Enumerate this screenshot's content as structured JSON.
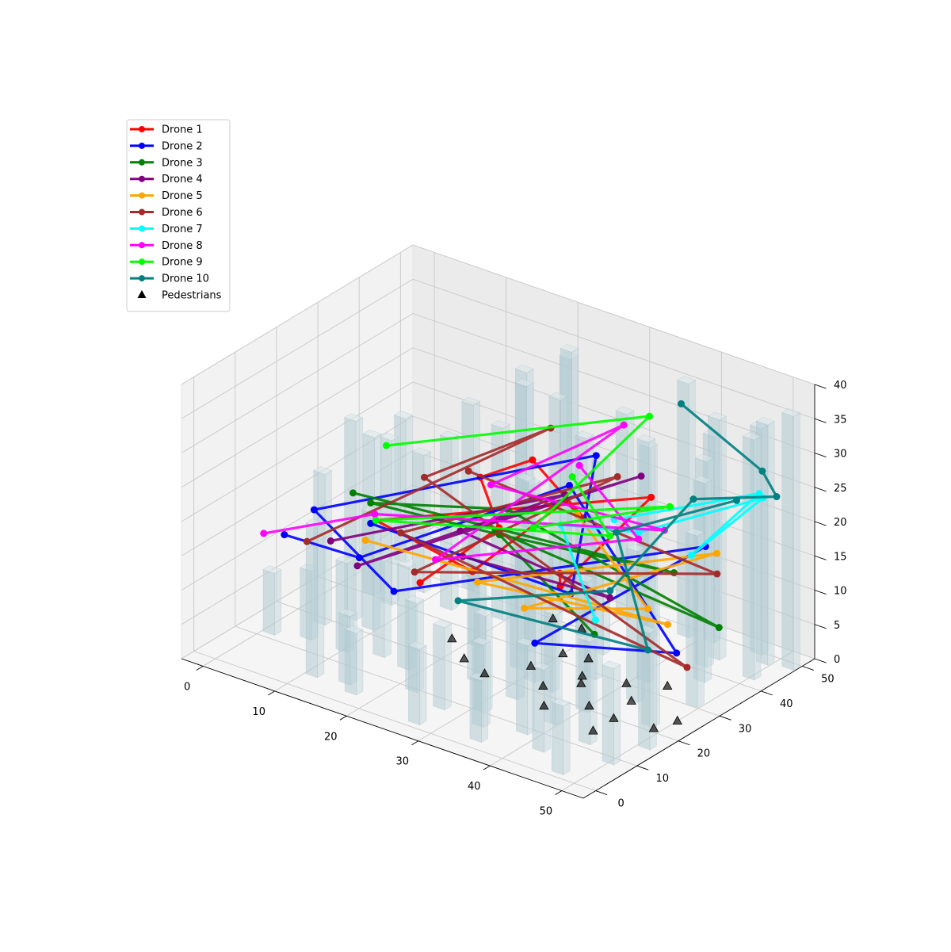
{
  "chart_data": {
    "type": "line3d",
    "title": "",
    "xlabel": "",
    "ylabel": "",
    "zlabel": "",
    "xlim": [
      -3,
      53
    ],
    "ylim": [
      -3,
      53
    ],
    "zlim": [
      0,
      40
    ],
    "x_ticks": [
      "0",
      "10",
      "20",
      "30",
      "40",
      "50"
    ],
    "y_ticks": [
      "0",
      "10",
      "20",
      "30",
      "40",
      "50"
    ],
    "z_ticks": [
      "0",
      "5",
      "10",
      "15",
      "20",
      "25",
      "30",
      "35",
      "40"
    ],
    "grid": true,
    "legend_position": "upper-left",
    "series": [
      {
        "name": "Drone 1",
        "color": "#ff0000",
        "points": [
          [
            17,
            20,
            10
          ],
          [
            28,
            20,
            22
          ],
          [
            30,
            12,
            33
          ],
          [
            20,
            42,
            21
          ],
          [
            26,
            44,
            14
          ],
          [
            32,
            29,
            24
          ],
          [
            22,
            24,
            12
          ],
          [
            12,
            18,
            18
          ],
          [
            40,
            36,
            25
          ],
          [
            40,
            14,
            20
          ],
          [
            29,
            33,
            11
          ]
        ]
      },
      {
        "name": "Drone 2",
        "color": "#0000ff",
        "points": [
          [
            13,
            15,
            19
          ],
          [
            34,
            27,
            12
          ],
          [
            26,
            47,
            22
          ],
          [
            8,
            10,
            21
          ],
          [
            22,
            5,
            16
          ],
          [
            47,
            37,
            20
          ],
          [
            33,
            20,
            7
          ],
          [
            47,
            30,
            7
          ],
          [
            24,
            44,
            18
          ],
          [
            12,
            14,
            14
          ],
          [
            5,
            8,
            17
          ]
        ]
      },
      {
        "name": "Drone 3",
        "color": "#008000",
        "points": [
          [
            14,
            9,
            26
          ],
          [
            38,
            45,
            10
          ],
          [
            20,
            34,
            13
          ],
          [
            13,
            15,
            22
          ],
          [
            28,
            22,
            24
          ],
          [
            46,
            42,
            6
          ],
          [
            20,
            33,
            14
          ],
          [
            39,
            24,
            9
          ]
        ]
      },
      {
        "name": "Drone 4",
        "color": "#800080",
        "points": [
          [
            8,
            14,
            15
          ],
          [
            28,
            36,
            21
          ],
          [
            10,
            17,
            11
          ],
          [
            34,
            44,
            23
          ],
          [
            18,
            28,
            15
          ],
          [
            40,
            26,
            14
          ],
          [
            27,
            13,
            20
          ]
        ]
      },
      {
        "name": "Drone 5",
        "color": "#ffa500",
        "points": [
          [
            14,
            12,
            18
          ],
          [
            40,
            40,
            5
          ],
          [
            25,
            20,
            13
          ],
          [
            48,
            38,
            19
          ],
          [
            35,
            14,
            15
          ],
          [
            43,
            30,
            12
          ],
          [
            32,
            32,
            21
          ]
        ]
      },
      {
        "name": "Drone 6",
        "color": "#a52a2a",
        "points": [
          [
            7,
            10,
            16
          ],
          [
            26,
            36,
            30
          ],
          [
            13,
            28,
            21
          ],
          [
            45,
            36,
            2
          ],
          [
            12,
            24,
            14
          ],
          [
            33,
            40,
            24
          ],
          [
            22,
            10,
            17
          ],
          [
            44,
            45,
            12
          ],
          [
            18,
            30,
            23
          ]
        ]
      },
      {
        "name": "Drone 7",
        "color": "#00ffff",
        "points": [
          [
            36,
            34,
            21
          ],
          [
            47,
            50,
            23
          ],
          [
            41,
            44,
            14
          ],
          [
            51,
            44,
            26
          ],
          [
            40,
            33,
            21
          ],
          [
            28,
            35,
            17
          ],
          [
            38,
            26,
            10
          ]
        ]
      },
      {
        "name": "Drone 8",
        "color": "#ff00ff",
        "points": [
          [
            5,
            3,
            19
          ],
          [
            13,
            16,
            20
          ],
          [
            43,
            34,
            22
          ],
          [
            24,
            25,
            25
          ],
          [
            31,
            45,
            29
          ],
          [
            18,
            22,
            13
          ],
          [
            44,
            26,
            24
          ],
          [
            30,
            36,
            26
          ]
        ]
      },
      {
        "name": "Drone 9",
        "color": "#00ff00",
        "points": [
          [
            10,
            24,
            26
          ],
          [
            34,
            46,
            31
          ],
          [
            27,
            30,
            18
          ],
          [
            38,
            44,
            20
          ],
          [
            12,
            18,
            18
          ],
          [
            40,
            26,
            23
          ],
          [
            29,
            36,
            24
          ]
        ]
      },
      {
        "name": "Drone 10",
        "color": "#008080",
        "points": [
          [
            39,
            45,
            35
          ],
          [
            48,
            49,
            27
          ],
          [
            50,
            49,
            24
          ],
          [
            43,
            41,
            24
          ],
          [
            36,
            33,
            11
          ],
          [
            20,
            24,
            7
          ],
          [
            43,
            30,
            6
          ],
          [
            34,
            38,
            17
          ],
          [
            45,
            48,
            22
          ]
        ]
      }
    ],
    "pedestrians": {
      "name": "Pedestrians",
      "color": "#000000",
      "points": [
        [
          18,
          26,
          0
        ],
        [
          22,
          22,
          0
        ],
        [
          29,
          26,
          0
        ],
        [
          26,
          20,
          0
        ],
        [
          35,
          28,
          0
        ],
        [
          40,
          30,
          0
        ],
        [
          44,
          33,
          0
        ],
        [
          33,
          33,
          0
        ],
        [
          33,
          22,
          0
        ],
        [
          36,
          17,
          0
        ],
        [
          40,
          21,
          0
        ],
        [
          43,
          26,
          0
        ],
        [
          30,
          32,
          0
        ],
        [
          36,
          26,
          0
        ],
        [
          44,
          15,
          0
        ],
        [
          44,
          20,
          0
        ],
        [
          49,
          21,
          0
        ],
        [
          50,
          25,
          0
        ],
        [
          28,
          40,
          0
        ],
        [
          24,
          40,
          0
        ]
      ]
    },
    "buildings": {
      "color": "#b0cad2",
      "items": [
        [
          1,
          12,
          9
        ],
        [
          4,
          19,
          22
        ],
        [
          5,
          14,
          10
        ],
        [
          6,
          23,
          29
        ],
        [
          7,
          30,
          24
        ],
        [
          9,
          22,
          17
        ],
        [
          10,
          14,
          13
        ],
        [
          11,
          5,
          22
        ],
        [
          13,
          34,
          25
        ],
        [
          14,
          16,
          14
        ],
        [
          15,
          6,
          10
        ],
        [
          17,
          4,
          9
        ],
        [
          19,
          36,
          28
        ],
        [
          20,
          40,
          33
        ],
        [
          21,
          27,
          19
        ],
        [
          22,
          10,
          13
        ],
        [
          23,
          43,
          31
        ],
        [
          24,
          44,
          38
        ],
        [
          25,
          33,
          23
        ],
        [
          26,
          18,
          17
        ],
        [
          27,
          2,
          11
        ],
        [
          28,
          25,
          20
        ],
        [
          29,
          39,
          29
        ],
        [
          30,
          47,
          30
        ],
        [
          31,
          11,
          14
        ],
        [
          32,
          17,
          18
        ],
        [
          33,
          36,
          28
        ],
        [
          34,
          22,
          21
        ],
        [
          35,
          3,
          9
        ],
        [
          36,
          29,
          24
        ],
        [
          37,
          40,
          31
        ],
        [
          38,
          48,
          37
        ],
        [
          39,
          14,
          16
        ],
        [
          40,
          20,
          19
        ],
        [
          41,
          33,
          26
        ],
        [
          42,
          6,
          12
        ],
        [
          43,
          27,
          22
        ],
        [
          44,
          45,
          35
        ],
        [
          45,
          12,
          15
        ],
        [
          46,
          38,
          29
        ],
        [
          47,
          2,
          10
        ],
        [
          48,
          22,
          19
        ],
        [
          49,
          31,
          25
        ],
        [
          50,
          43,
          35
        ],
        [
          51,
          16,
          17
        ],
        [
          52,
          49,
          37
        ],
        [
          47,
          50,
          33
        ],
        [
          44,
          42,
          30
        ],
        [
          38,
          9,
          13
        ],
        [
          33,
          7,
          12
        ],
        [
          27,
          8,
          12
        ],
        [
          21,
          49,
          34
        ],
        [
          16,
          47,
          31
        ],
        [
          12,
          41,
          27
        ],
        [
          8,
          36,
          20
        ],
        [
          4,
          31,
          23
        ],
        [
          2,
          42,
          21
        ],
        [
          31,
          23,
          20
        ],
        [
          18,
          15,
          15
        ],
        [
          26,
          30,
          25
        ],
        [
          35,
          44,
          28
        ],
        [
          41,
          49,
          30
        ],
        [
          50,
          9,
          14
        ],
        [
          49,
          48,
          35
        ]
      ]
    }
  }
}
